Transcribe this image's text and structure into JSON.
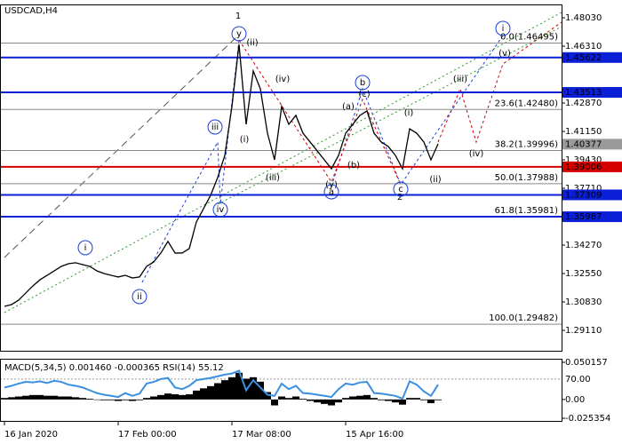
{
  "chart_data": {
    "type": "line",
    "title": "USDCAD,H4",
    "categories": [
      "16 Jan 2020",
      null,
      null,
      null,
      null,
      null,
      null,
      null,
      null,
      null,
      null,
      null,
      null,
      null,
      null,
      null,
      "17 Feb 00:00",
      null,
      null,
      null,
      null,
      null,
      null,
      null,
      null,
      null,
      null,
      null,
      null,
      null,
      null,
      null,
      "17 Mar 08:00",
      null,
      null,
      null,
      null,
      null,
      null,
      null,
      null,
      null,
      null,
      null,
      null,
      null,
      null,
      null,
      "15 Apr 16:00",
      null,
      null,
      null,
      null,
      null,
      null,
      null,
      null,
      null,
      null,
      null,
      null,
      null
    ],
    "series": [
      {
        "color": "#000000",
        "values": [
          1.3056,
          1.3067,
          1.3094,
          1.3137,
          1.318,
          1.3217,
          1.3244,
          1.3271,
          1.3298,
          1.3314,
          1.332,
          1.3309,
          1.3298,
          1.3271,
          1.3255,
          1.3244,
          1.3234,
          1.3244,
          1.3228,
          1.3234,
          1.3298,
          1.3325,
          1.3379,
          1.3449,
          1.3379,
          1.3379,
          1.3406,
          1.3567,
          1.3647,
          1.3728,
          1.3836,
          1.397,
          1.4266,
          1.4642,
          1.4158,
          1.4481,
          1.4373,
          1.4104,
          1.3943,
          1.4266,
          1.4158,
          1.4212,
          1.4104,
          1.4051,
          1.3997,
          1.3943,
          1.3889,
          1.397,
          1.4104,
          1.4158,
          1.4212,
          1.4239,
          1.4104,
          1.4051,
          1.4024,
          1.397,
          1.3889,
          1.4131,
          1.4104,
          1.4051,
          1.3943,
          1.404
        ]
      }
    ],
    "ylim": [
      1.27874,
      1.48836
    ],
    "yticks": [
      {
        "value": 1.4803,
        "label": "1.48030"
      },
      {
        "value": 1.4631,
        "label": "1.46310"
      },
      {
        "value": 1.4287,
        "label": "1.42870"
      },
      {
        "value": 1.4115,
        "label": "1.41150"
      },
      {
        "value": 1.3943,
        "label": "1.39430"
      },
      {
        "value": 1.3771,
        "label": "1.37710"
      },
      {
        "value": 1.3427,
        "label": "1.34270"
      },
      {
        "value": 1.3255,
        "label": "1.32550"
      },
      {
        "value": 1.3083,
        "label": "1.30830"
      },
      {
        "value": 1.2911,
        "label": "1.29110"
      }
    ],
    "levels": [
      {
        "value": 1.45622,
        "color": "#0a1fd6"
      },
      {
        "value": 1.43513,
        "color": "#0a1fd6"
      },
      {
        "value": 1.40377,
        "color": "#9a9a9a"
      },
      {
        "value": 1.39006,
        "color": "#d40000"
      },
      {
        "value": 1.37309,
        "color": "#0a1fd6"
      },
      {
        "value": 1.35987,
        "color": "#0a1fd6"
      }
    ],
    "fib_levels": [
      {
        "label": "0.0(1.46495)",
        "value": 1.46495
      },
      {
        "label": "23.6(1.42480)",
        "value": 1.4248
      },
      {
        "label": "38.2(1.39996)",
        "value": 1.39996
      },
      {
        "label": "50.0(1.37988)",
        "value": 1.37988
      },
      {
        "label": "61.8(1.35981)",
        "value": 1.35981
      },
      {
        "label": "100.0(1.29482)",
        "value": 1.29482
      }
    ],
    "annotations": [
      {
        "text": "1",
        "color": "#d40000"
      },
      {
        "text": "(ii)",
        "color": "#d40000"
      },
      {
        "text": "(iv)",
        "color": "#d40000"
      },
      {
        "text": "(i)",
        "color": "#d40000"
      },
      {
        "text": "(iii)",
        "color": "#d40000"
      },
      {
        "text": "(a)",
        "color": "#d40000"
      },
      {
        "text": "(c)",
        "color": "#d40000"
      },
      {
        "text": "(b)",
        "color": "#d40000"
      },
      {
        "text": "(y)",
        "color": "#d40000"
      },
      {
        "text": "2",
        "color": "#d40000"
      },
      {
        "text": "(i)",
        "color": "#d40000"
      },
      {
        "text": "(ii)",
        "color": "#d40000"
      },
      {
        "text": "(iii)",
        "color": "#d40000"
      },
      {
        "text": "(iv)",
        "color": "#d40000"
      },
      {
        "text": "(v)",
        "color": "#d40000"
      },
      {
        "text": "y",
        "color": "#1a3fd6",
        "style": "circle"
      },
      {
        "text": "iii",
        "color": "#1a3fd6",
        "style": "circle"
      },
      {
        "text": "iv",
        "color": "#1a3fd6",
        "style": "circle"
      },
      {
        "text": "i",
        "color": "#1a3fd6",
        "style": "circle"
      },
      {
        "text": "ii",
        "color": "#1a3fd6",
        "style": "circle"
      },
      {
        "text": "b",
        "color": "#1a3fd6",
        "style": "circle"
      },
      {
        "text": "a",
        "color": "#1a3fd6",
        "style": "circle"
      },
      {
        "text": "c",
        "color": "#1a3fd6",
        "style": "circle"
      },
      {
        "text": "i",
        "color": "#1a3fd6",
        "style": "circle"
      }
    ],
    "indicator": {
      "label": "MACD(5,34,5) 0.001460 -0.000365 RSI(14) 55.12",
      "macd_color": "#000000",
      "rsi_color": "#3b8fe0",
      "macd_ylim": [
        -0.025354,
        0.050157
      ],
      "macd_yticks": [
        0.050157,
        {
          "value": 0,
          "label": "0.00"
        },
        -0.025354
      ],
      "rsi_ylim": [
        0,
        100
      ],
      "rsi_yticks": [
        {
          "value": 70,
          "label": "70.00"
        }
      ],
      "macd": [
        0.002,
        0.003,
        0.004,
        0.005,
        0.006,
        0.006,
        0.005,
        0.005,
        0.004,
        0.004,
        0.003,
        0.002,
        0.001,
        0,
        -0.001,
        -0.001,
        -0.002,
        -0.001,
        -0.002,
        -0.001,
        0.002,
        0.004,
        0.006,
        0.008,
        0.007,
        0.006,
        0.007,
        0.012,
        0.015,
        0.018,
        0.022,
        0.026,
        0.03,
        0.036,
        0.028,
        0.03,
        0.024,
        0.01,
        -0.008,
        0.004,
        0.002,
        0.004,
        0.001,
        -0.002,
        -0.004,
        -0.006,
        -0.008,
        -0.004,
        0.002,
        0.004,
        0.005,
        0.006,
        0.002,
        -0.001,
        -0.002,
        -0.004,
        -0.007,
        0.002,
        0.002,
        -0.001,
        -0.005,
        -0.001
      ],
      "rsi": [
        55,
        58,
        62,
        65,
        64,
        66,
        63,
        67,
        65,
        60,
        58,
        55,
        50,
        45,
        42,
        40,
        38,
        45,
        40,
        44,
        62,
        65,
        70,
        72,
        55,
        52,
        58,
        68,
        70,
        72,
        75,
        78,
        80,
        85,
        50,
        68,
        55,
        42,
        40,
        62,
        52,
        58,
        45,
        44,
        42,
        40,
        38,
        52,
        62,
        60,
        64,
        65,
        45,
        44,
        42,
        40,
        35,
        66,
        60,
        48,
        40,
        60
      ]
    }
  }
}
